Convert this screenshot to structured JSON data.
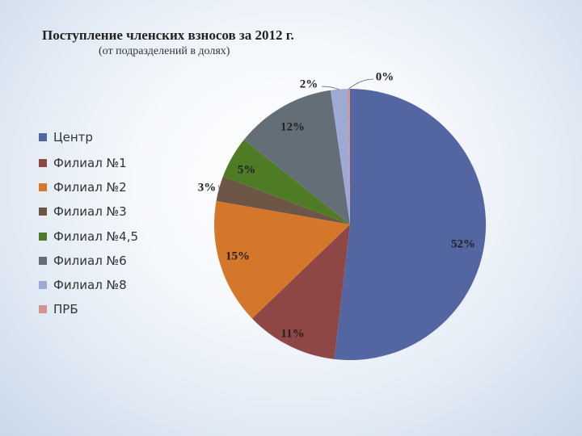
{
  "chart_data": {
    "type": "pie",
    "title": "Поступление членских взносов за 2012 г.",
    "subtitle": "(от подразделений в долях)",
    "legend_position": "left",
    "slices": [
      {
        "label": "Центр",
        "value": 52,
        "display": "52%",
        "color": "#5366a1"
      },
      {
        "label": "Филиал №1",
        "value": 11,
        "display": "11%",
        "color": "#8e4745"
      },
      {
        "label": "Филиал №2",
        "value": 15,
        "display": "15%",
        "color": "#d4772a"
      },
      {
        "label": "Филиал №3",
        "value": 3,
        "display": "3%",
        "color": "#6e5646"
      },
      {
        "label": "Филиал №4,5",
        "value": 5,
        "display": "5%",
        "color": "#4e7b24"
      },
      {
        "label": "Филиал №6",
        "value": 12,
        "display": "12%",
        "color": "#646e76"
      },
      {
        "label": "Филиал №8",
        "value": 2,
        "display": "2%",
        "color": "#9daad4"
      },
      {
        "label": "ПРБ",
        "value": 0.3,
        "display": "0%",
        "color": "#d49492"
      }
    ]
  }
}
